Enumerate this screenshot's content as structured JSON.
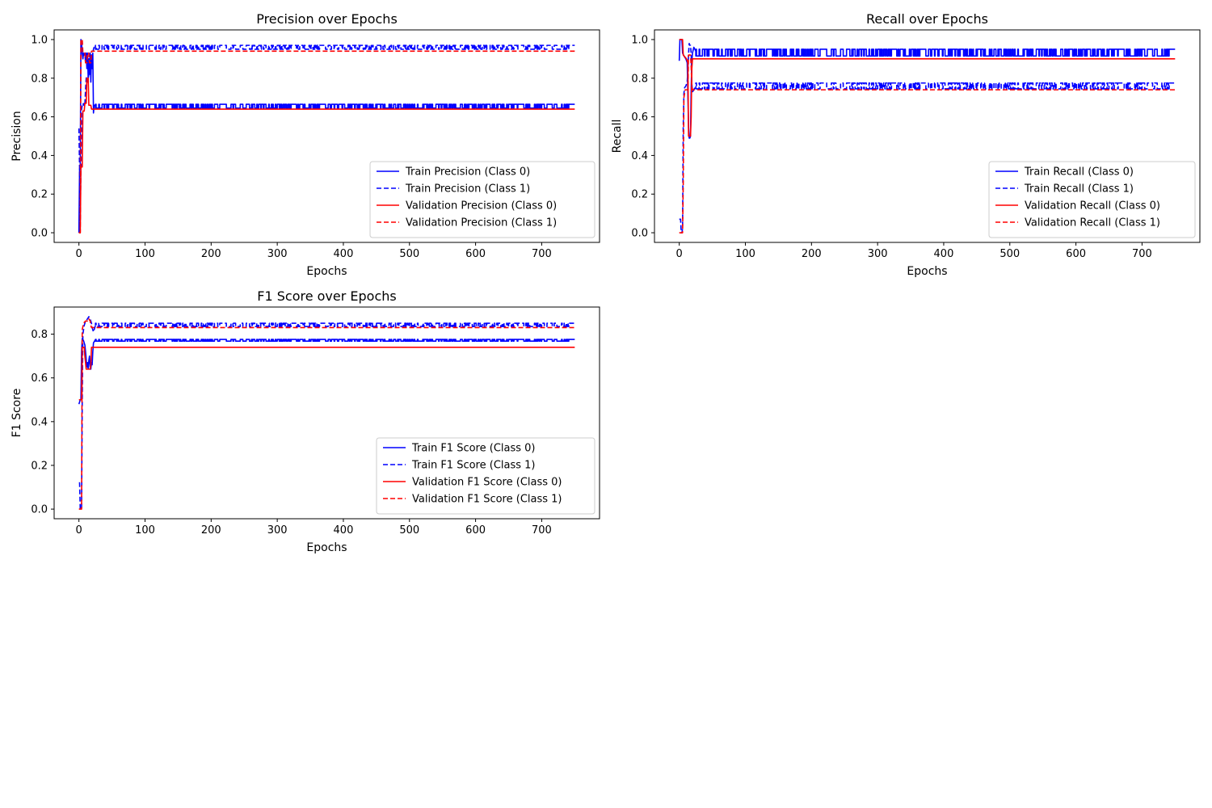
{
  "colors": {
    "train": "#0000ff",
    "validation": "#ff0000"
  },
  "chart_data": [
    {
      "type": "line",
      "title": "Precision over Epochs",
      "xlabel": "Epochs",
      "ylabel": "Precision",
      "xlim": [
        -37.5,
        787.5
      ],
      "ylim": [
        -0.05,
        1.05
      ],
      "xticks": [
        0,
        100,
        200,
        300,
        400,
        500,
        600,
        700
      ],
      "yticks": [
        0.0,
        0.2,
        0.4,
        0.6,
        0.8,
        1.0
      ],
      "legend_position": "lower right",
      "series": [
        {
          "name": "Train Precision (Class 0)",
          "color": "#0000ff",
          "style": "solid",
          "points": [
            [
              0,
              0.0
            ],
            [
              1,
              0.33
            ],
            [
              2,
              0.34
            ],
            [
              3,
              1.0
            ],
            [
              4,
              0.98
            ],
            [
              5,
              0.93
            ],
            [
              6,
              0.9
            ],
            [
              7,
              0.93
            ],
            [
              8,
              0.92
            ],
            [
              9,
              0.93
            ],
            [
              10,
              0.88
            ],
            [
              11,
              0.93
            ],
            [
              12,
              0.85
            ],
            [
              13,
              0.93
            ],
            [
              14,
              0.8
            ],
            [
              15,
              0.9
            ],
            [
              16,
              0.82
            ],
            [
              17,
              0.93
            ],
            [
              18,
              0.78
            ],
            [
              19,
              0.92
            ],
            [
              20,
              0.85
            ],
            [
              21,
              0.93
            ],
            [
              22,
              0.62
            ],
            [
              23,
              0.66
            ],
            [
              25,
              0.66
            ]
          ],
          "oscillation": {
            "from": 25,
            "to": 750,
            "levels": [
              0.645,
              0.665
            ]
          }
        },
        {
          "name": "Train Precision (Class 1)",
          "color": "#0000ff",
          "style": "dashed",
          "points": [
            [
              0,
              0.54
            ],
            [
              1,
              0.33
            ],
            [
              2,
              0.06
            ],
            [
              3,
              0.34
            ],
            [
              4,
              0.64
            ],
            [
              5,
              0.66
            ],
            [
              6,
              0.67
            ],
            [
              7,
              0.66
            ],
            [
              8,
              0.67
            ],
            [
              9,
              0.66
            ],
            [
              10,
              0.74
            ],
            [
              11,
              0.8
            ],
            [
              12,
              0.81
            ],
            [
              13,
              0.78
            ],
            [
              14,
              0.8
            ],
            [
              15,
              0.82
            ],
            [
              16,
              0.85
            ],
            [
              17,
              0.9
            ],
            [
              18,
              0.88
            ],
            [
              19,
              0.92
            ],
            [
              20,
              0.9
            ],
            [
              21,
              0.93
            ],
            [
              22,
              0.95
            ],
            [
              23,
              0.96
            ],
            [
              25,
              0.96
            ]
          ],
          "oscillation": {
            "from": 25,
            "to": 750,
            "levels": [
              0.95,
              0.97
            ]
          }
        },
        {
          "name": "Validation Precision (Class 0)",
          "color": "#ff0000",
          "style": "solid",
          "points": [
            [
              0,
              0.0
            ],
            [
              2,
              0.0
            ],
            [
              3,
              0.34
            ],
            [
              5,
              0.34
            ],
            [
              6,
              0.63
            ],
            [
              8,
              0.63
            ],
            [
              9,
              0.67
            ],
            [
              11,
              0.67
            ],
            [
              12,
              0.8
            ],
            [
              14,
              0.8
            ],
            [
              15,
              0.66
            ],
            [
              18,
              0.66
            ],
            [
              19,
              0.64
            ],
            [
              750,
              0.64
            ]
          ]
        },
        {
          "name": "Validation Precision (Class 1)",
          "color": "#ff0000",
          "style": "dashed",
          "points": [
            [
              0,
              0.0
            ],
            [
              2,
              0.0
            ],
            [
              3,
              1.0
            ],
            [
              5,
              1.0
            ],
            [
              6,
              0.93
            ],
            [
              9,
              0.93
            ],
            [
              10,
              0.88
            ],
            [
              12,
              0.88
            ],
            [
              13,
              0.93
            ],
            [
              15,
              0.93
            ],
            [
              16,
              0.88
            ],
            [
              18,
              0.88
            ],
            [
              19,
              0.94
            ],
            [
              750,
              0.94
            ]
          ]
        }
      ]
    },
    {
      "type": "line",
      "title": "Recall over Epochs",
      "xlabel": "Epochs",
      "ylabel": "Recall",
      "xlim": [
        -37.5,
        787.5
      ],
      "ylim": [
        -0.05,
        1.05
      ],
      "xticks": [
        0,
        100,
        200,
        300,
        400,
        500,
        600,
        700
      ],
      "yticks": [
        0.0,
        0.2,
        0.4,
        0.6,
        0.8,
        1.0
      ],
      "legend_position": "lower right",
      "series": [
        {
          "name": "Train Recall (Class 0)",
          "color": "#0000ff",
          "style": "solid",
          "points": [
            [
              0,
              0.89
            ],
            [
              1,
              1.0
            ],
            [
              4,
              1.0
            ],
            [
              5,
              0.93
            ],
            [
              8,
              0.91
            ],
            [
              10,
              0.9
            ],
            [
              12,
              0.88
            ],
            [
              14,
              0.55
            ],
            [
              15,
              0.49
            ],
            [
              16,
              0.49
            ],
            [
              17,
              0.5
            ],
            [
              18,
              0.75
            ],
            [
              19,
              0.89
            ],
            [
              20,
              0.93
            ],
            [
              22,
              0.96
            ],
            [
              25,
              0.94
            ]
          ],
          "oscillation": {
            "from": 25,
            "to": 750,
            "levels": [
              0.915,
              0.95
            ]
          }
        },
        {
          "name": "Train Recall (Class 1)",
          "color": "#0000ff",
          "style": "dashed",
          "points": [
            [
              0,
              0.07
            ],
            [
              2,
              0.07
            ],
            [
              3,
              0.0
            ],
            [
              4,
              0.0
            ],
            [
              5,
              0.02
            ],
            [
              6,
              0.55
            ],
            [
              7,
              0.72
            ],
            [
              8,
              0.75
            ],
            [
              10,
              0.76
            ],
            [
              12,
              0.78
            ],
            [
              14,
              0.92
            ],
            [
              15,
              0.98
            ],
            [
              16,
              0.97
            ],
            [
              17,
              0.97
            ],
            [
              18,
              0.93
            ],
            [
              19,
              0.77
            ],
            [
              20,
              0.73
            ],
            [
              22,
              0.74
            ],
            [
              25,
              0.76
            ]
          ],
          "oscillation": {
            "from": 25,
            "to": 750,
            "levels": [
              0.745,
              0.775
            ]
          }
        },
        {
          "name": "Validation Recall (Class 0)",
          "color": "#ff0000",
          "style": "solid",
          "points": [
            [
              0,
              1.0
            ],
            [
              5,
              1.0
            ],
            [
              6,
              0.92
            ],
            [
              11,
              0.9
            ],
            [
              13,
              0.88
            ],
            [
              14,
              0.5
            ],
            [
              17,
              0.5
            ],
            [
              18,
              0.6
            ],
            [
              19,
              0.85
            ],
            [
              20,
              0.9
            ],
            [
              750,
              0.9
            ]
          ]
        },
        {
          "name": "Validation Recall (Class 1)",
          "color": "#ff0000",
          "style": "dashed",
          "points": [
            [
              0,
              0.0
            ],
            [
              5,
              0.0
            ],
            [
              6,
              0.25
            ],
            [
              7,
              0.7
            ],
            [
              9,
              0.74
            ],
            [
              13,
              0.74
            ],
            [
              14,
              0.92
            ],
            [
              17,
              0.92
            ],
            [
              18,
              0.86
            ],
            [
              19,
              0.76
            ],
            [
              20,
              0.74
            ],
            [
              750,
              0.74
            ]
          ]
        }
      ]
    },
    {
      "type": "line",
      "title": "F1 Score over Epochs",
      "xlabel": "Epochs",
      "ylabel": "F1 Score",
      "xlim": [
        -37.5,
        787.5
      ],
      "ylim": [
        -0.044,
        0.924
      ],
      "xticks": [
        0,
        100,
        200,
        300,
        400,
        500,
        600,
        700
      ],
      "yticks": [
        0.0,
        0.2,
        0.4,
        0.6,
        0.8
      ],
      "legend_position": "lower right",
      "series": [
        {
          "name": "Train F1 Score (Class 0)",
          "color": "#0000ff",
          "style": "solid",
          "points": [
            [
              0,
              0.48
            ],
            [
              2,
              0.5
            ],
            [
              3,
              0.5
            ],
            [
              4,
              0.72
            ],
            [
              5,
              0.78
            ],
            [
              7,
              0.77
            ],
            [
              9,
              0.75
            ],
            [
              10,
              0.72
            ],
            [
              12,
              0.65
            ],
            [
              13,
              0.67
            ],
            [
              14,
              0.64
            ],
            [
              15,
              0.68
            ],
            [
              16,
              0.7
            ],
            [
              17,
              0.65
            ],
            [
              18,
              0.64
            ],
            [
              19,
              0.67
            ],
            [
              20,
              0.66
            ],
            [
              21,
              0.72
            ],
            [
              22,
              0.76
            ],
            [
              25,
              0.775
            ]
          ],
          "oscillation": {
            "from": 25,
            "to": 750,
            "levels": [
              0.768,
              0.776
            ]
          }
        },
        {
          "name": "Train F1 Score (Class 1)",
          "color": "#0000ff",
          "style": "dashed",
          "points": [
            [
              0,
              0.12
            ],
            [
              1,
              0.12
            ],
            [
              2,
              0.0
            ],
            [
              4,
              0.0
            ],
            [
              5,
              0.5
            ],
            [
              6,
              0.8
            ],
            [
              8,
              0.84
            ],
            [
              10,
              0.86
            ],
            [
              13,
              0.87
            ],
            [
              15,
              0.88
            ],
            [
              17,
              0.87
            ],
            [
              18,
              0.86
            ],
            [
              19,
              0.85
            ],
            [
              20,
              0.83
            ],
            [
              22,
              0.81
            ],
            [
              25,
              0.84
            ]
          ],
          "oscillation": {
            "from": 25,
            "to": 750,
            "levels": [
              0.835,
              0.85
            ]
          }
        },
        {
          "name": "Validation F1 Score (Class 0)",
          "color": "#ff0000",
          "style": "solid",
          "points": [
            [
              0,
              0.5
            ],
            [
              4,
              0.5
            ],
            [
              5,
              0.74
            ],
            [
              8,
              0.74
            ],
            [
              9,
              0.7
            ],
            [
              11,
              0.64
            ],
            [
              17,
              0.64
            ],
            [
              18,
              0.66
            ],
            [
              19,
              0.74
            ],
            [
              750,
              0.74
            ]
          ]
        },
        {
          "name": "Validation F1 Score (Class 1)",
          "color": "#ff0000",
          "style": "dashed",
          "points": [
            [
              0,
              0.0
            ],
            [
              4,
              0.0
            ],
            [
              5,
              0.82
            ],
            [
              7,
              0.85
            ],
            [
              10,
              0.86
            ],
            [
              14,
              0.86
            ],
            [
              15,
              0.87
            ],
            [
              17,
              0.86
            ],
            [
              18,
              0.84
            ],
            [
              19,
              0.83
            ],
            [
              750,
              0.83
            ]
          ]
        }
      ]
    }
  ]
}
